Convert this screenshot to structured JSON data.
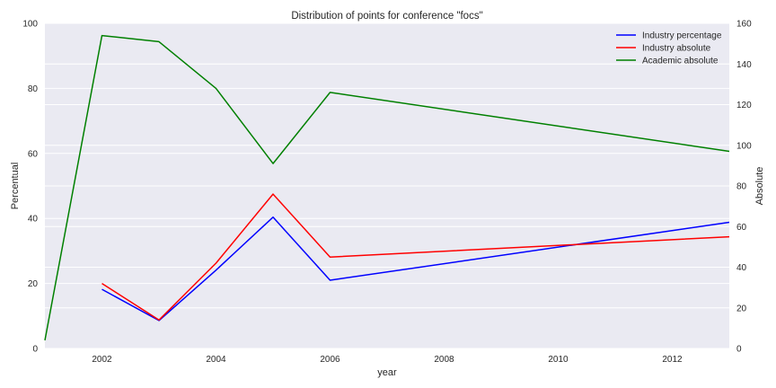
{
  "chart_data": {
    "type": "line",
    "title": "Distribution of points for conference \"focs\"",
    "xlabel": "year",
    "ylabel_left": "Percentual",
    "ylabel_right": "Absolute",
    "xlim": [
      2001,
      2013
    ],
    "ylim_left": [
      0,
      100
    ],
    "ylim_right": [
      0,
      160
    ],
    "x_ticks": [
      2002,
      2004,
      2006,
      2008,
      2010,
      2012
    ],
    "y_ticks_left": [
      0,
      20,
      40,
      60,
      80,
      100
    ],
    "y_ticks_right": [
      0,
      20,
      40,
      60,
      80,
      100,
      120,
      140,
      160
    ],
    "grid": true,
    "legend_position": "top-right",
    "series": [
      {
        "name": "Industry percentage",
        "axis": "left",
        "color": "#0000ff",
        "x": [
          2002,
          2003,
          2004,
          2005,
          2006,
          2013
        ],
        "y": [
          18.2,
          8.6,
          24.1,
          40.4,
          21.0,
          38.8
        ]
      },
      {
        "name": "Industry absolute",
        "axis": "right",
        "color": "#ff0000",
        "x": [
          2002,
          2003,
          2004,
          2005,
          2006,
          2013
        ],
        "y": [
          32,
          14,
          42,
          76,
          45,
          55
        ]
      },
      {
        "name": "Academic absolute",
        "axis": "right",
        "color": "#008000",
        "x": [
          2001,
          2002,
          2003,
          2004,
          2005,
          2006,
          2013
        ],
        "y": [
          4,
          154,
          151,
          128,
          91,
          126,
          97
        ]
      }
    ]
  }
}
